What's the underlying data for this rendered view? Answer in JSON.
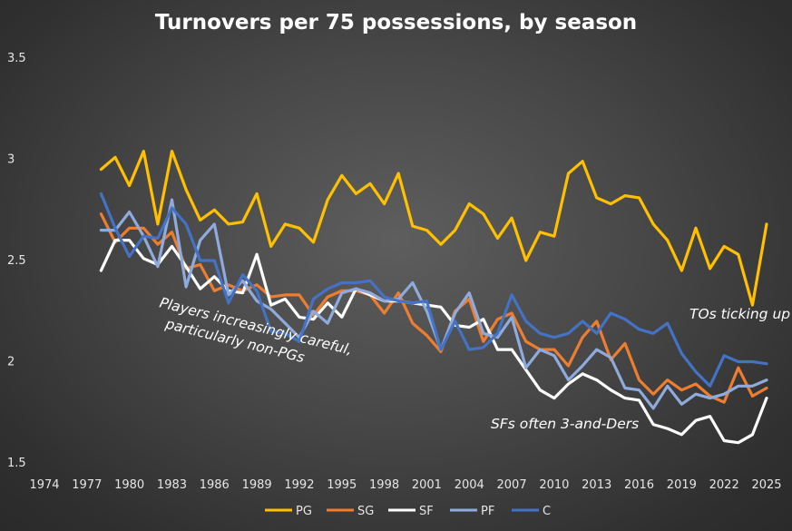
{
  "chart_data": {
    "type": "line",
    "title": "Turnovers per 75 possessions, by season",
    "xlabel": "",
    "ylabel": "",
    "xlim": [
      1974,
      2025
    ],
    "ylim": [
      1.5,
      3.5
    ],
    "x_ticks": [
      1974,
      1977,
      1980,
      1983,
      1986,
      1989,
      1992,
      1995,
      1998,
      2001,
      2004,
      2007,
      2010,
      2013,
      2016,
      2019,
      2022,
      2025
    ],
    "y_ticks": [
      1.5,
      2,
      2.5,
      3,
      3.5
    ],
    "y_tick_labels": [
      "1.5",
      "2",
      "2.5",
      "3",
      "3.5"
    ],
    "grid": false,
    "legend_position": "bottom",
    "x": [
      1978,
      1979,
      1980,
      1981,
      1982,
      1983,
      1984,
      1985,
      1986,
      1987,
      1988,
      1989,
      1990,
      1991,
      1992,
      1993,
      1994,
      1995,
      1996,
      1997,
      1998,
      1999,
      2000,
      2001,
      2002,
      2003,
      2004,
      2005,
      2006,
      2007,
      2008,
      2009,
      2010,
      2011,
      2012,
      2013,
      2014,
      2015,
      2016,
      2017,
      2018,
      2019,
      2020,
      2021,
      2022,
      2023,
      2024,
      2025
    ],
    "series": [
      {
        "name": "PG",
        "color": "#FFC000",
        "values": [
          2.95,
          3.01,
          2.87,
          3.04,
          2.68,
          3.04,
          2.85,
          2.7,
          2.75,
          2.68,
          2.69,
          2.83,
          2.57,
          2.68,
          2.66,
          2.59,
          2.8,
          2.92,
          2.83,
          2.88,
          2.78,
          2.93,
          2.67,
          2.65,
          2.58,
          2.65,
          2.78,
          2.73,
          2.61,
          2.71,
          2.5,
          2.64,
          2.62,
          2.93,
          2.99,
          2.81,
          2.78,
          2.82,
          2.81,
          2.68,
          2.6,
          2.45,
          2.66,
          2.46,
          2.57,
          2.53,
          2.28,
          2.68
        ]
      },
      {
        "name": "SG",
        "color": "#ED7D31",
        "values": [
          2.73,
          2.59,
          2.66,
          2.66,
          2.58,
          2.64,
          2.46,
          2.48,
          2.35,
          2.38,
          2.35,
          2.38,
          2.32,
          2.33,
          2.33,
          2.23,
          2.32,
          2.35,
          2.35,
          2.33,
          2.24,
          2.34,
          2.19,
          2.13,
          2.05,
          2.25,
          2.31,
          2.1,
          2.21,
          2.24,
          2.1,
          2.06,
          2.06,
          1.98,
          2.12,
          2.2,
          2.01,
          2.09,
          1.91,
          1.84,
          1.91,
          1.86,
          1.89,
          1.83,
          1.8,
          1.97,
          1.83,
          1.87
        ]
      },
      {
        "name": "SF",
        "color": "#FFFFFF",
        "values": [
          2.45,
          2.6,
          2.6,
          2.51,
          2.48,
          2.57,
          2.47,
          2.36,
          2.42,
          2.35,
          2.34,
          2.53,
          2.28,
          2.31,
          2.22,
          2.21,
          2.29,
          2.22,
          2.36,
          2.33,
          2.3,
          2.3,
          2.29,
          2.28,
          2.27,
          2.18,
          2.17,
          2.21,
          2.06,
          2.06,
          1.96,
          1.86,
          1.82,
          1.89,
          1.94,
          1.91,
          1.86,
          1.82,
          1.81,
          1.69,
          1.67,
          1.64,
          1.71,
          1.73,
          1.61,
          1.6,
          1.64,
          1.82
        ]
      },
      {
        "name": "PF",
        "color": "#8FAADC",
        "values": [
          2.65,
          2.65,
          2.74,
          2.62,
          2.47,
          2.8,
          2.37,
          2.6,
          2.68,
          2.33,
          2.4,
          2.3,
          2.26,
          2.19,
          2.12,
          2.25,
          2.19,
          2.34,
          2.36,
          2.34,
          2.3,
          2.31,
          2.39,
          2.25,
          2.06,
          2.24,
          2.34,
          2.14,
          2.12,
          2.22,
          1.97,
          2.06,
          2.03,
          1.91,
          1.98,
          2.06,
          2.02,
          1.87,
          1.86,
          1.77,
          1.88,
          1.79,
          1.84,
          1.82,
          1.84,
          1.88,
          1.88,
          1.91
        ]
      },
      {
        "name": "C",
        "color": "#4472C4",
        "values": [
          2.83,
          2.66,
          2.52,
          2.62,
          2.61,
          2.76,
          2.68,
          2.5,
          2.5,
          2.29,
          2.43,
          2.35,
          2.15,
          2.14,
          2.1,
          2.31,
          2.36,
          2.39,
          2.39,
          2.4,
          2.32,
          2.3,
          2.29,
          2.3,
          2.06,
          2.2,
          2.06,
          2.07,
          2.14,
          2.33,
          2.2,
          2.14,
          2.12,
          2.14,
          2.2,
          2.14,
          2.24,
          2.21,
          2.16,
          2.14,
          2.19,
          2.04,
          1.95,
          1.88,
          2.03,
          2.0,
          2.0,
          1.99
        ]
      }
    ],
    "annotations": [
      {
        "text": "Players increasingly careful, particularly non-PGs",
        "lines": [
          "Players increasingly careful,",
          "particularly non-PGs"
        ]
      },
      {
        "text": "SFs often 3-and-Ders"
      },
      {
        "text": "TOs ticking up"
      }
    ]
  }
}
